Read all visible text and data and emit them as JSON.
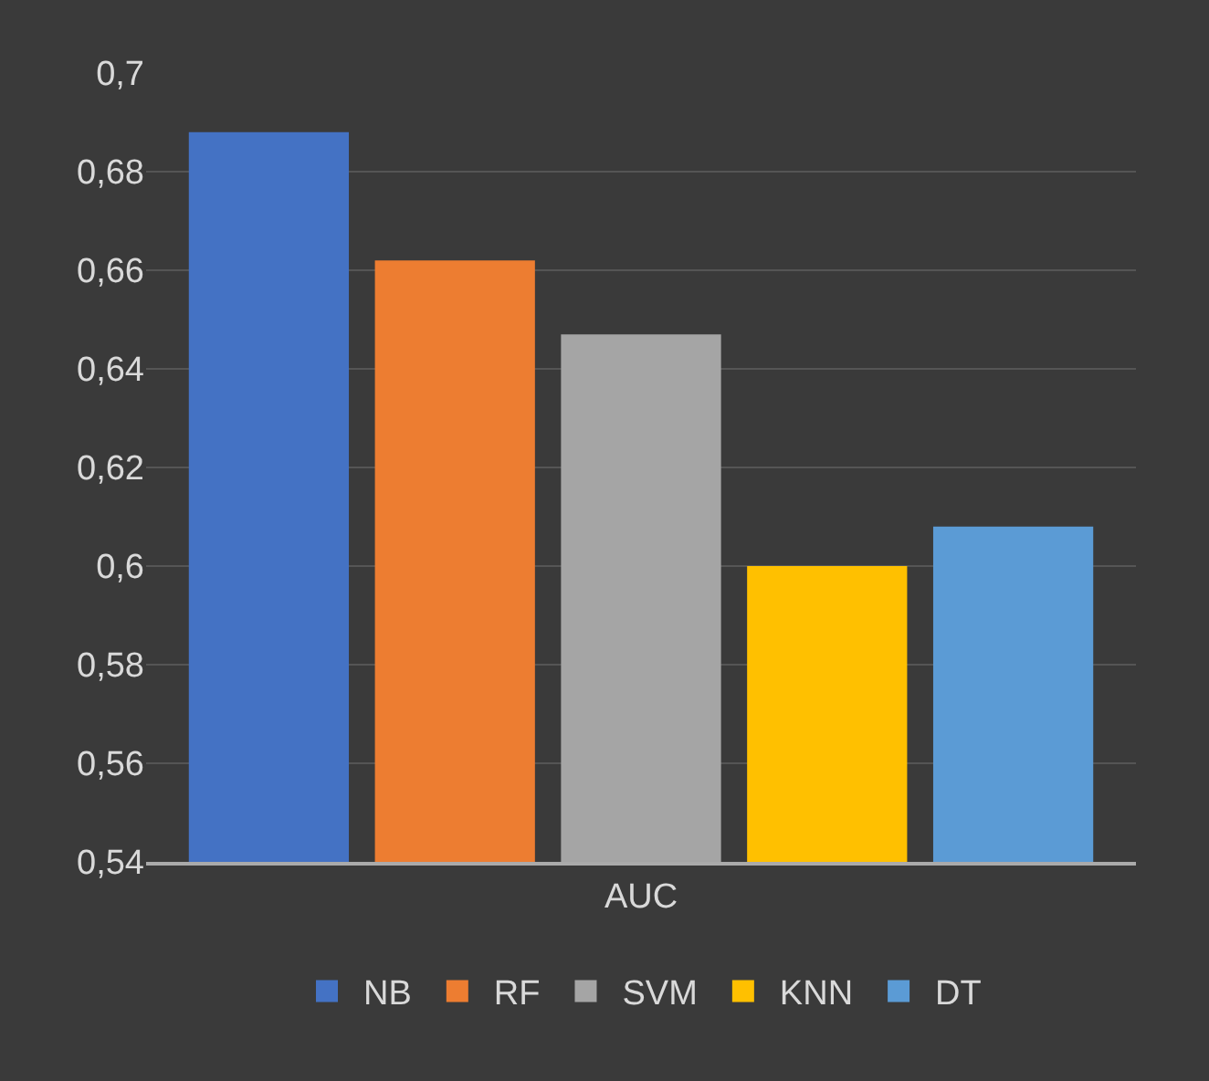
{
  "chart_data": {
    "type": "bar",
    "categories": [
      "AUC"
    ],
    "series": [
      {
        "name": "NB",
        "color": "#4472c4",
        "values": [
          0.688
        ]
      },
      {
        "name": "RF",
        "color": "#ed7d31",
        "values": [
          0.662
        ]
      },
      {
        "name": "SVM",
        "color": "#a5a5a5",
        "values": [
          0.647
        ]
      },
      {
        "name": "KNN",
        "color": "#ffc000",
        "values": [
          0.6
        ]
      },
      {
        "name": "DT",
        "color": "#5b9bd5",
        "values": [
          0.608
        ]
      }
    ],
    "ylim": [
      0.54,
      0.7
    ],
    "yticks": [
      {
        "value": 0.54,
        "label": "0,54"
      },
      {
        "value": 0.56,
        "label": "0,56"
      },
      {
        "value": 0.58,
        "label": "0,58"
      },
      {
        "value": 0.6,
        "label": "0,6"
      },
      {
        "value": 0.62,
        "label": "0,62"
      },
      {
        "value": 0.64,
        "label": "0,64"
      },
      {
        "value": 0.66,
        "label": "0,66"
      },
      {
        "value": 0.68,
        "label": "0,68"
      },
      {
        "value": 0.7,
        "label": "0,7"
      }
    ],
    "grid": "y",
    "legend": "bottom"
  }
}
